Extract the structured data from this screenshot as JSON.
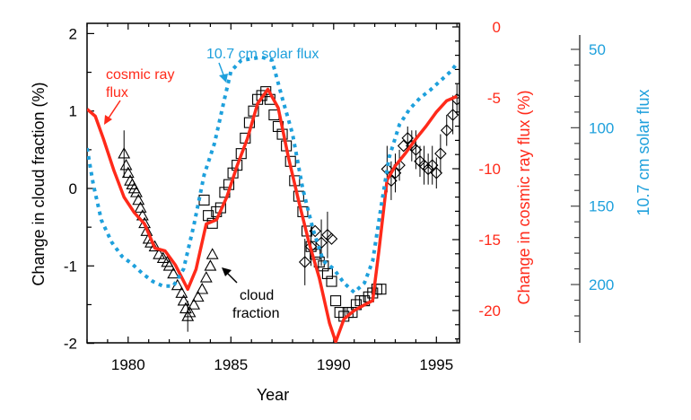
{
  "chart_data": {
    "type": "line",
    "title": "",
    "xlabel": "Year",
    "ylabel": "Change in cloud fraction (%)",
    "xlim": [
      1978.0,
      1996.1
    ],
    "ylim": [
      -2,
      2
    ],
    "x_ticks": [
      1980,
      1985,
      1990,
      1995
    ],
    "x_tick_labels": [
      "1980",
      "1985",
      "1990",
      "1995"
    ],
    "y_ticks": [
      -2,
      -1,
      0,
      1,
      2
    ],
    "y_tick_labels": [
      "-2",
      "-1",
      "0",
      "1",
      "2"
    ],
    "grid": false,
    "colors": {
      "cosmic": "#ff2a1a",
      "solar": "#1ea0dc",
      "cloud": "#000000",
      "axis": "#000000"
    },
    "right_axis_cosmic": {
      "label": "Change in cosmic ray flux (%)",
      "ylim": [
        -22.3,
        0.5
      ],
      "ticks": [
        0,
        -5,
        -10,
        -15,
        -20
      ],
      "tick_labels": [
        "0",
        "-5",
        "-10",
        "-15",
        "-20"
      ]
    },
    "right_axis_solar": {
      "label": "10.7 cm solar flux",
      "ylim": [
        237,
        41
      ],
      "inverted": true,
      "ticks": [
        50,
        100,
        150,
        200
      ],
      "tick_labels": [
        "50",
        "100",
        "150",
        "200"
      ]
    },
    "annotations": {
      "cosmic_line1": "cosmic ray",
      "cosmic_line2": "flux",
      "solar": "10.7 cm solar flux",
      "cloud_line1": "cloud",
      "cloud_line2": "fraction"
    },
    "series": [
      {
        "name": "cosmic ray flux",
        "axis": "cosmic",
        "style": "solid",
        "x": [
          1978.0,
          1978.4,
          1978.8,
          1979.3,
          1979.8,
          1980.3,
          1980.8,
          1981.3,
          1981.8,
          1982.3,
          1982.9,
          1983.3,
          1983.8,
          1984.3,
          1984.8,
          1985.3,
          1985.8,
          1986.3,
          1986.8,
          1987.3,
          1987.8,
          1988.3,
          1988.8,
          1989.3,
          1989.8,
          1990.1,
          1990.5,
          1991.0,
          1991.5,
          1991.9,
          1992.2,
          1992.6,
          1993.0,
          1993.5,
          1994.0,
          1994.5,
          1995.0,
          1995.5,
          1996.0
        ],
        "values": [
          -5.8,
          -6.3,
          -7.9,
          -10.1,
          -12.0,
          -13.1,
          -13.9,
          -15.6,
          -15.8,
          -16.8,
          -18.5,
          -17.1,
          -13.9,
          -13.6,
          -12.0,
          -9.8,
          -7.9,
          -5.4,
          -4.4,
          -5.7,
          -9.2,
          -12.3,
          -15.2,
          -17.7,
          -20.9,
          -22.2,
          -20.6,
          -20.0,
          -19.6,
          -19.3,
          -15.8,
          -10.8,
          -9.8,
          -8.9,
          -7.9,
          -7.0,
          -6.0,
          -5.2,
          -4.9
        ]
      },
      {
        "name": "10.7 cm solar flux",
        "axis": "solar",
        "style": "dotted",
        "x": [
          1978.0,
          1978.3,
          1978.7,
          1979.2,
          1979.7,
          1980.2,
          1980.7,
          1981.2,
          1981.7,
          1982.2,
          1982.7,
          1983.2,
          1983.7,
          1984.2,
          1984.7,
          1985.0,
          1985.5,
          1986.0,
          1986.5,
          1987.0,
          1987.5,
          1988.0,
          1988.5,
          1989.0,
          1989.5,
          1990.0,
          1990.5,
          1991.0,
          1991.5,
          1991.9,
          1992.3,
          1992.7,
          1993.2,
          1993.7,
          1994.2,
          1994.7,
          1995.2,
          1995.7,
          1996.0
        ],
        "values": [
          113,
          136,
          159,
          173,
          182,
          187,
          193,
          198,
          201,
          201,
          190,
          162,
          130,
          110,
          81,
          64,
          57,
          56,
          55,
          57,
          81,
          104,
          139,
          165,
          185,
          190,
          199,
          205,
          199,
          185,
          151,
          119,
          98,
          88,
          81,
          76,
          70,
          64,
          59
        ]
      },
      {
        "name": "cloud fraction (triangles)",
        "axis": "cloud",
        "marker": "triangle",
        "x": [
          1979.8,
          1979.9,
          1980.0,
          1980.1,
          1980.2,
          1980.3,
          1980.4,
          1980.5,
          1980.6,
          1980.7,
          1980.8,
          1980.9,
          1981.0,
          1981.1,
          1981.3,
          1981.5,
          1981.7,
          1981.9,
          1982.0,
          1982.2,
          1982.4,
          1982.6,
          1982.7,
          1982.8,
          1982.9,
          1983.0,
          1983.2,
          1983.4,
          1983.6,
          1983.8,
          1984.0,
          1984.1
        ],
        "values": [
          0.45,
          0.3,
          0.2,
          0.1,
          0.05,
          0.0,
          -0.05,
          -0.15,
          -0.25,
          -0.35,
          -0.45,
          -0.55,
          -0.65,
          -0.7,
          -0.75,
          -0.85,
          -0.9,
          -0.95,
          -1.0,
          -1.1,
          -1.25,
          -1.35,
          -1.45,
          -1.55,
          -1.65,
          -1.6,
          -1.5,
          -1.4,
          -1.3,
          -1.15,
          -1.0,
          -0.85
        ],
        "errors": [
          0.3,
          0,
          0,
          0,
          0,
          0,
          0,
          0,
          0,
          0,
          0,
          0,
          0,
          0,
          0,
          0,
          0,
          0,
          0,
          0,
          0,
          0,
          0,
          0,
          0.2,
          0,
          0,
          0,
          0,
          0,
          0,
          0
        ]
      },
      {
        "name": "cloud fraction (squares)",
        "axis": "cloud",
        "marker": "square",
        "x": [
          1983.7,
          1983.9,
          1984.1,
          1984.3,
          1984.5,
          1984.7,
          1984.9,
          1985.1,
          1985.3,
          1985.5,
          1985.7,
          1985.9,
          1986.1,
          1986.3,
          1986.5,
          1986.7,
          1986.9,
          1987.1,
          1987.3,
          1987.5,
          1987.7,
          1987.9,
          1988.1,
          1988.3,
          1988.5,
          1988.7,
          1988.9,
          1989.1,
          1989.3,
          1989.5,
          1989.7,
          1989.9,
          1990.1,
          1990.3,
          1990.5,
          1990.7,
          1990.9,
          1991.1,
          1991.3,
          1991.5,
          1991.7,
          1991.9,
          1992.1,
          1992.3
        ],
        "values": [
          -0.15,
          -0.35,
          -0.45,
          -0.3,
          -0.25,
          -0.05,
          0.05,
          0.2,
          0.3,
          0.45,
          0.65,
          0.85,
          1.0,
          1.15,
          1.2,
          1.25,
          1.15,
          0.95,
          0.8,
          0.7,
          0.55,
          0.35,
          0.1,
          -0.1,
          -0.3,
          -0.55,
          -0.75,
          -0.85,
          -0.95,
          -1.0,
          -1.1,
          -1.2,
          -1.45,
          -1.6,
          -1.65,
          -1.6,
          -1.6,
          -1.5,
          -1.45,
          -1.45,
          -1.4,
          -1.35,
          -1.3,
          -1.3
        ],
        "errors": [
          0,
          0,
          0,
          0,
          0,
          0,
          0,
          0,
          0,
          0,
          0,
          0,
          0,
          0,
          0,
          0,
          0,
          0,
          0,
          0,
          0,
          0,
          0,
          0,
          0,
          0,
          0,
          0,
          0,
          0,
          0,
          0,
          0,
          0,
          0,
          0,
          0,
          0,
          0,
          0,
          0,
          0,
          0,
          0
        ]
      },
      {
        "name": "cloud fraction (diamonds)",
        "axis": "cloud",
        "marker": "diamond",
        "x": [
          1988.6,
          1988.9,
          1989.1,
          1989.4,
          1989.7,
          1989.9,
          1992.6,
          1992.8,
          1993.0,
          1993.2,
          1993.4,
          1993.6,
          1993.8,
          1994.0,
          1994.2,
          1994.4,
          1994.6,
          1994.8,
          1995.0,
          1995.2,
          1995.5,
          1995.8,
          1996.0
        ],
        "values": [
          -0.95,
          -0.75,
          -0.55,
          -0.7,
          -0.6,
          -0.65,
          0.25,
          0.1,
          0.2,
          0.3,
          0.55,
          0.65,
          0.55,
          0.5,
          0.35,
          0.3,
          0.25,
          0.3,
          0.2,
          0.45,
          0.75,
          0.95,
          1.15
        ],
        "errors": [
          0.3,
          0.25,
          0,
          0.3,
          0.3,
          0,
          0.3,
          0.25,
          0.25,
          0.2,
          0,
          0.15,
          0.2,
          0.25,
          0.2,
          0.25,
          0.2,
          0.25,
          0.2,
          0.25,
          0.2,
          0.25,
          0.2
        ]
      }
    ]
  }
}
